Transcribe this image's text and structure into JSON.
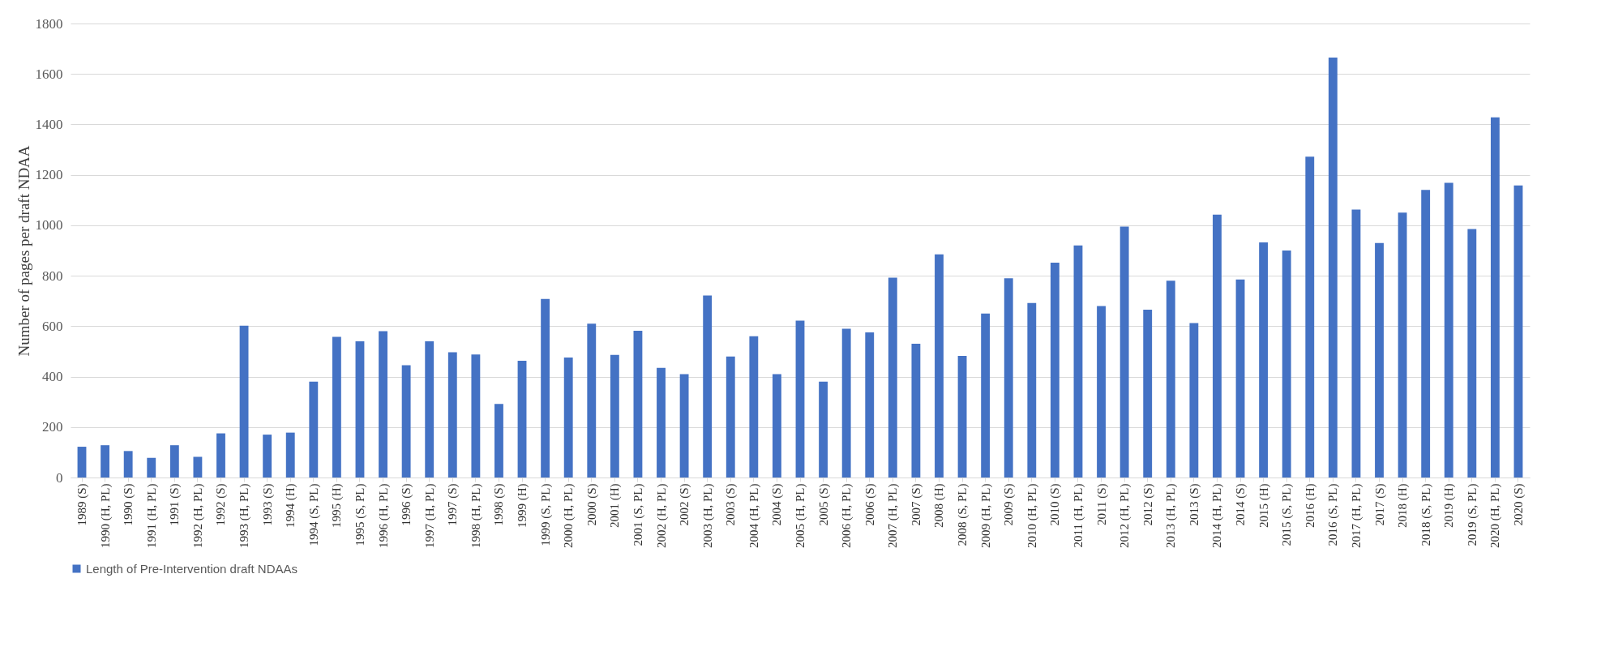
{
  "chart_data": {
    "type": "bar",
    "ylabel": "Number of pages per draft NDAA",
    "categories": [
      "1989 (S)",
      "1990 (H, PL)",
      "1990 (S)",
      "1991 (H, PL)",
      "1991 (S)",
      "1992 (H, PL)",
      "1992 (S)",
      "1993 (H, PL)",
      "1993 (S)",
      "1994 (H)",
      "1994 (S, PL)",
      "1995 (H)",
      "1995 (S, PL)",
      "1996 (H, PL)",
      "1996 (S)",
      "1997 (H, PL)",
      "1997 (S)",
      "1998 (H, PL)",
      "1998 (S)",
      "1999 (H)",
      "1999 (S, PL)",
      "2000 (H, PL)",
      "2000 (S)",
      "2001 (H)",
      "2001 (S, PL)",
      "2002 (H, PL)",
      "2002 (S)",
      "2003 (H, PL)",
      "2003 (S)",
      "2004 (H, PL)",
      "2004 (S)",
      "2005 (H, PL)",
      "2005 (S)",
      "2006 (H, PL)",
      "2006 (S)",
      "2007 (H, PL)",
      "2007 (S)",
      "2008 (H)",
      "2008 (S, PL)",
      "2009 (H, PL)",
      "2009 (S)",
      "2010 (H, PL)",
      "2010 (S)",
      "2011 (H, PL)",
      "2011 (S)",
      "2012 (H, PL)",
      "2012 (S)",
      "2013 (H, PL)",
      "2013 (S)",
      "2014 (H, PL)",
      "2014 (S)",
      "2015 (H)",
      "2015 (S, PL)",
      "2016 (H)",
      "2016 (S, PL)",
      "2017 (H, PL)",
      "2017 (S)",
      "2018 (H)",
      "2018 (S, PL)",
      "2019 (H)",
      "2019 (S, PL)",
      "2020 (H, PL)",
      "2020 (S)"
    ],
    "series": [
      {
        "name": "Length of Pre-Intervention draft NDAAs",
        "color": "#4472c4",
        "values": [
          122,
          128,
          105,
          78,
          128,
          82,
          175,
          602,
          170,
          178,
          380,
          558,
          540,
          580,
          445,
          540,
          497,
          488,
          292,
          463,
          708,
          476,
          610,
          486,
          582,
          435,
          410,
          722,
          480,
          560,
          410,
          622,
          380,
          590,
          575,
          792,
          530,
          885,
          482,
          650,
          790,
          692,
          852,
          920,
          680,
          995,
          665,
          780,
          612,
          1042,
          785,
          932,
          900,
          1272,
          1665,
          1062,
          930,
          1050,
          1140,
          1168,
          985,
          1428,
          1158
        ]
      }
    ],
    "ylim": [
      0,
      1800
    ],
    "yticks": [
      0,
      200,
      400,
      600,
      800,
      1000,
      1200,
      1400,
      1600,
      1800
    ],
    "grid": "y",
    "legend": "bottom"
  }
}
